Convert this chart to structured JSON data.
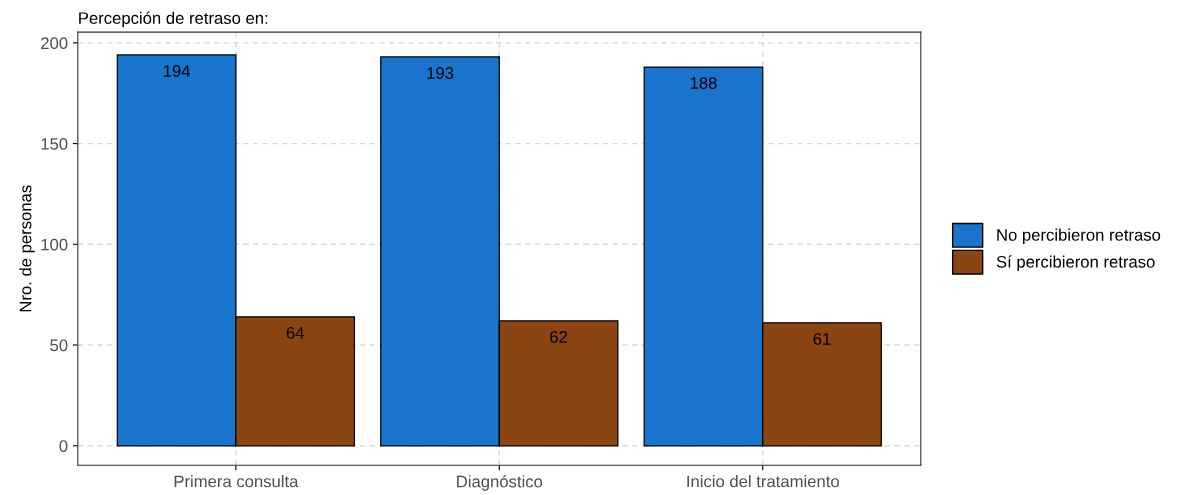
{
  "chart_data": {
    "type": "bar",
    "title": "Percepción de retraso en:",
    "ylabel": "Nro. de personas",
    "categories": [
      "Primera consulta",
      "Diagnóstico",
      "Inicio del tratamiento"
    ],
    "series": [
      {
        "name": "No percibieron retraso",
        "color": "#1874cd",
        "values": [
          194,
          193,
          188
        ]
      },
      {
        "name": "Sí percibieron retraso",
        "color": "#8b4513",
        "values": [
          64,
          62,
          61
        ]
      }
    ],
    "ylim": [
      -9.7,
      205.3
    ],
    "yticks": [
      0,
      50,
      100,
      150,
      200
    ],
    "grid": true,
    "legend": "right",
    "data_labels": true
  }
}
